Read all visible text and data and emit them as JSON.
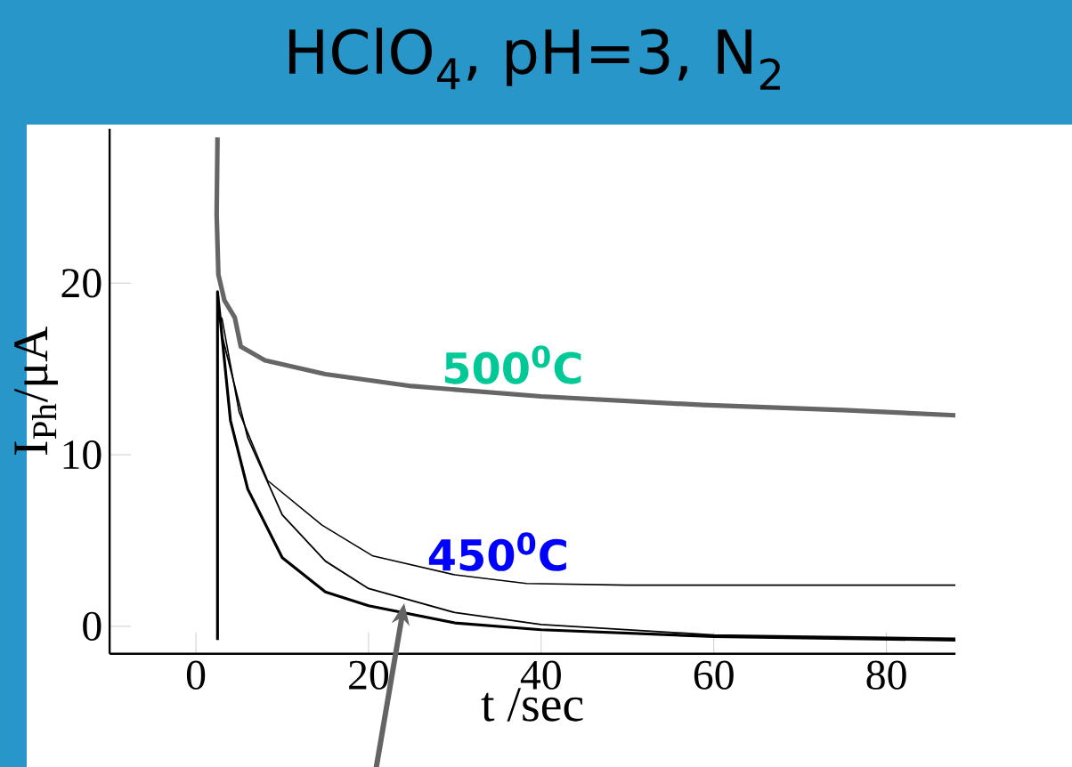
{
  "chart_data": {
    "type": "line",
    "title": "HClO$_{4}$, pH=3, N$_{2}$",
    "xlabel": "t /sec",
    "ylabel": "I$_{Ph}$/μA",
    "xlim": [
      -10,
      88
    ],
    "ylim": [
      -1.6,
      29
    ],
    "xticks": [
      0,
      20,
      40,
      60,
      80
    ],
    "yticks": [
      0,
      10,
      20
    ],
    "grid": false,
    "marker": "none",
    "line_style": "solid",
    "series": [
      {
        "name": "500$^{0}$C",
        "color": "#666666",
        "x": [
          2.5,
          2.4,
          2.6,
          3.3,
          4.5,
          5.2,
          8,
          15,
          25,
          40,
          58.8,
          75,
          88
        ],
        "values": [
          28.5,
          24,
          20.5,
          19,
          18,
          16.3,
          15.5,
          14.7,
          14,
          13.4,
          12.9,
          12.6,
          12.3
        ]
      },
      {
        "name": "450$^{0}$C",
        "color": "#000000",
        "x": [
          3,
          5,
          8.3,
          14.6,
          20.5,
          30,
          38.3,
          50,
          88
        ],
        "values": [
          18,
          12.5,
          8.5,
          5.9,
          4.1,
          3.0,
          2.5,
          2.4,
          2.4
        ]
      },
      {
        "color": "#000000",
        "x": [
          3,
          6,
          10,
          15,
          20,
          30,
          40,
          60,
          88
        ],
        "values": [
          17,
          11,
          6.5,
          3.8,
          2.2,
          0.8,
          0.1,
          -0.5,
          -0.7
        ]
      },
      {
        "color": "#000000",
        "x": [
          2.5,
          2.5,
          4,
          6,
          10,
          15,
          20,
          30,
          40,
          60,
          88
        ],
        "values": [
          -0.8,
          19.5,
          12,
          8,
          4,
          2,
          1.2,
          0.2,
          -0.2,
          -0.6,
          -0.8
        ]
      }
    ]
  }
}
